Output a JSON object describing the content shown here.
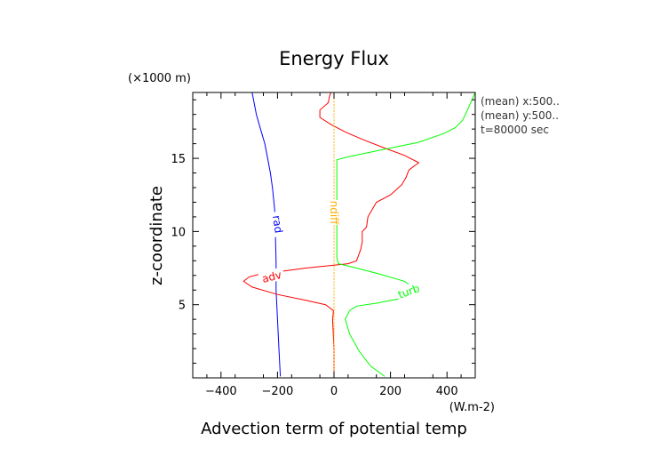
{
  "chart_data": {
    "type": "line",
    "title": "Energy Flux",
    "xlabel": "Advection term of potential temp",
    "ylabel": "z-coordinate",
    "x_unit": "(W.m-2)",
    "y_unit": "(×1000 m)",
    "xlim": [
      -500,
      500
    ],
    "ylim": [
      0,
      19.5
    ],
    "x_ticks": [
      -400,
      -200,
      0,
      200,
      400
    ],
    "x_tick_labels": [
      "−400",
      "−200",
      "0",
      "200",
      "400"
    ],
    "y_ticks": [
      5,
      10,
      15
    ],
    "y_tick_labels": [
      "5",
      "10",
      "15"
    ],
    "info_lines": [
      "(mean) x:500..",
      "(mean) y:500..",
      "t=80000 sec"
    ],
    "series": [
      {
        "name": "rad",
        "color": "#0000ff",
        "label_at": [
          -200,
          10.5
        ],
        "points": [
          [
            -190,
            0.1
          ],
          [
            -195,
            2
          ],
          [
            -200,
            4
          ],
          [
            -205,
            6
          ],
          [
            -205,
            8
          ],
          [
            -208,
            10
          ],
          [
            -210,
            11.5
          ],
          [
            -218,
            13
          ],
          [
            -225,
            14
          ],
          [
            -235,
            15
          ],
          [
            -245,
            16
          ],
          [
            -260,
            17
          ],
          [
            -275,
            18
          ],
          [
            -290,
            19.5
          ]
        ]
      },
      {
        "name": "adv",
        "color": "#ff0000",
        "label_at": [
          -220,
          6.9
        ],
        "points": [
          [
            0,
            0.1
          ],
          [
            0,
            2
          ],
          [
            -5,
            4
          ],
          [
            -2,
            4.6
          ],
          [
            -30,
            5
          ],
          [
            -100,
            5.3
          ],
          [
            -200,
            5.7
          ],
          [
            -290,
            6.2
          ],
          [
            -320,
            6.6
          ],
          [
            -300,
            6.9
          ],
          [
            -260,
            7.1
          ],
          [
            -200,
            7.25
          ],
          [
            -100,
            7.5
          ],
          [
            0,
            7.7
          ],
          [
            50,
            7.8
          ],
          [
            80,
            8
          ],
          [
            95,
            8.8
          ],
          [
            100,
            9.3
          ],
          [
            100,
            10
          ],
          [
            115,
            10.3
          ],
          [
            120,
            11
          ],
          [
            150,
            12
          ],
          [
            200,
            12.5
          ],
          [
            240,
            13.2
          ],
          [
            255,
            13.7
          ],
          [
            265,
            14.2
          ],
          [
            300,
            14.7
          ],
          [
            250,
            15.2
          ],
          [
            180,
            15.7
          ],
          [
            100,
            16.3
          ],
          [
            40,
            16.8
          ],
          [
            -10,
            17.3
          ],
          [
            -50,
            17.8
          ],
          [
            -50,
            18.3
          ],
          [
            -20,
            18.8
          ],
          [
            -15,
            19.3
          ],
          [
            -10,
            19.5
          ]
        ]
      },
      {
        "name": "turb",
        "color": "#00ff00",
        "label_at": [
          265,
          5.9
        ],
        "points": [
          [
            180,
            0.1
          ],
          [
            130,
            0.8
          ],
          [
            90,
            1.8
          ],
          [
            55,
            3
          ],
          [
            40,
            4
          ],
          [
            55,
            4.6
          ],
          [
            80,
            4.9
          ],
          [
            150,
            5.1
          ],
          [
            230,
            5.4
          ],
          [
            260,
            5.8
          ],
          [
            270,
            6.3
          ],
          [
            250,
            6.6
          ],
          [
            160,
            7.1
          ],
          [
            80,
            7.5
          ],
          [
            15,
            7.8
          ],
          [
            10,
            8.2
          ],
          [
            10,
            10
          ],
          [
            10,
            12
          ],
          [
            10,
            14
          ],
          [
            10,
            14.9
          ],
          [
            50,
            15.1
          ],
          [
            150,
            15.5
          ],
          [
            300,
            16.1
          ],
          [
            390,
            16.7
          ],
          [
            430,
            17.1
          ],
          [
            455,
            17.6
          ],
          [
            470,
            18.2
          ],
          [
            500,
            19.5
          ]
        ]
      },
      {
        "name": "ndiff",
        "color": "#ffb000",
        "label_at": [
          0,
          11.3
        ],
        "points": [
          [
            0,
            0.1
          ],
          [
            0,
            19.5
          ]
        ]
      }
    ]
  }
}
